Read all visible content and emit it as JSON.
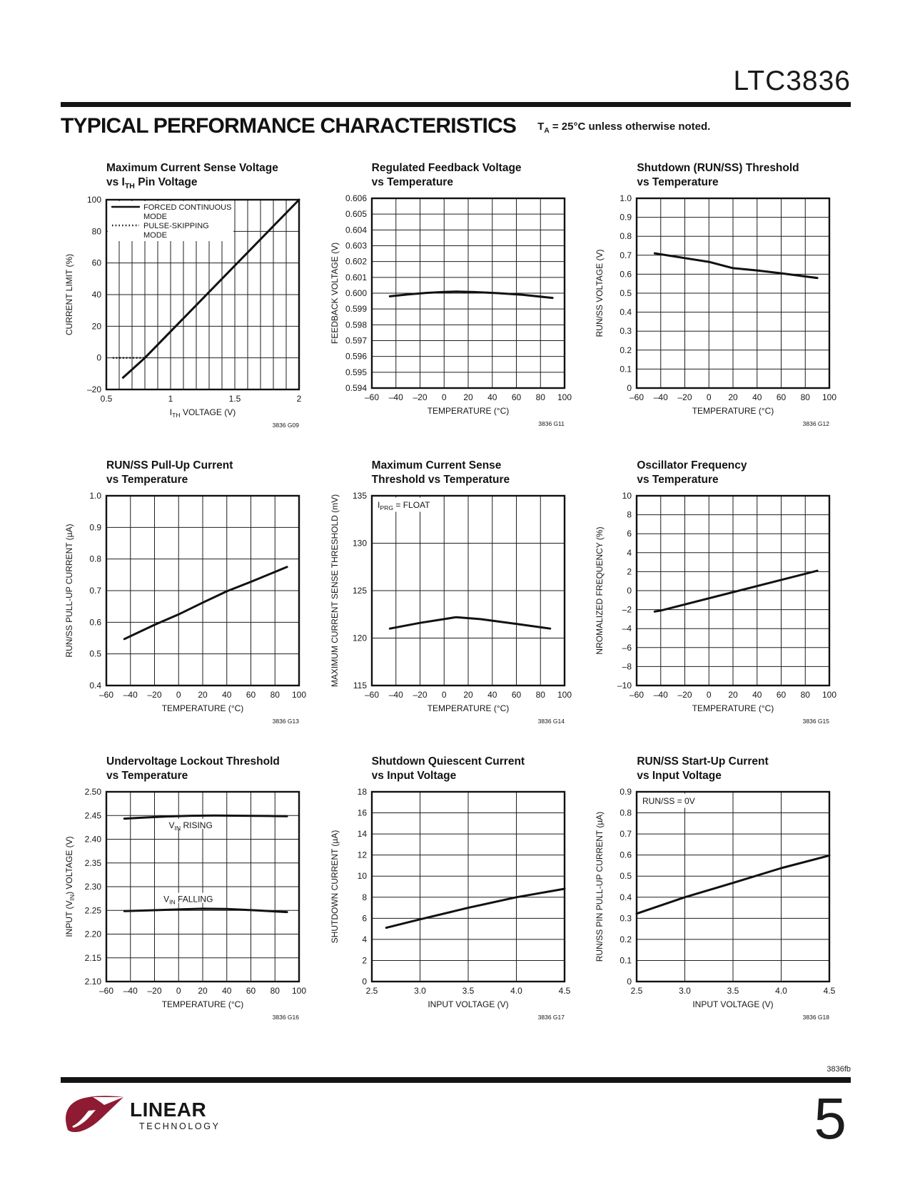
{
  "page": {
    "brand": "LTC3836",
    "section_title": "TYPICAL PERFORMANCE CHARACTERISTICS",
    "condition": "T~A~ = 25°C unless otherwise noted.",
    "doc_code": "3836fb",
    "page_number": "5",
    "logo_line1": "LINEAR",
    "logo_line2": "TECHNOLOGY",
    "logo_color": "#8f1b33"
  },
  "chart_data": [
    {
      "id": "G09",
      "type": "line",
      "title": [
        "Maximum Current Sense Voltage",
        "vs I~TH~ Pin Voltage"
      ],
      "xlabel": "I~TH~ VOLTAGE (V)",
      "ylabel": "CURRENT LIMIT (%)",
      "xlim": [
        0.5,
        2
      ],
      "ylim": [
        -20,
        100
      ],
      "x_ticks": {
        "vals": [
          0.5,
          1,
          1.5,
          2
        ],
        "labels": [
          "0.5",
          "1",
          "1.5",
          "2"
        ]
      },
      "grid_x": [
        0.6,
        0.7,
        0.8,
        0.9,
        1.0,
        1.1,
        1.2,
        1.3,
        1.4,
        1.5,
        1.6,
        1.7,
        1.8,
        1.9
      ],
      "y_ticks": {
        "vals": [
          -20,
          0,
          20,
          40,
          60,
          80,
          100
        ],
        "labels": [
          "–20",
          "0",
          "20",
          "40",
          "60",
          "80",
          "100"
        ]
      },
      "legend": {
        "items": [
          {
            "style": "solid",
            "lines": [
              "FORCED CONTINUOUS",
              "MODE"
            ]
          },
          {
            "style": "dotted",
            "lines": [
              "PULSE-SKIPPING",
              "MODE"
            ]
          }
        ]
      },
      "series": [
        {
          "name": "FORCED CONTINUOUS MODE",
          "style": "solid",
          "points": [
            [
              0.63,
              -12.5
            ],
            [
              0.8,
              0
            ],
            [
              2,
              100
            ]
          ]
        },
        {
          "name": "PULSE-SKIPPING MODE",
          "style": "dotted",
          "points": [
            [
              0.55,
              0
            ],
            [
              0.8,
              0
            ]
          ]
        }
      ],
      "note": "3836 G09"
    },
    {
      "id": "G11",
      "type": "line",
      "title": [
        "Regulated Feedback Voltage",
        "vs Temperature"
      ],
      "xlabel": "TEMPERATURE (°C)",
      "ylabel": "FEEDBACK VOLTAGE (V)",
      "xlim": [
        -60,
        100
      ],
      "ylim": [
        0.594,
        0.606
      ],
      "x_ticks": {
        "vals": [
          -60,
          -40,
          -20,
          0,
          20,
          40,
          60,
          80,
          100
        ],
        "labels": [
          "–60",
          "–40",
          "–20",
          "0",
          "20",
          "40",
          "60",
          "80",
          "100"
        ]
      },
      "y_ticks": {
        "vals": [
          0.594,
          0.595,
          0.596,
          0.597,
          0.598,
          0.599,
          0.6,
          0.601,
          0.602,
          0.603,
          0.604,
          0.605,
          0.606
        ],
        "labels": [
          "0.594",
          "0.595",
          "0.596",
          "0.597",
          "0.598",
          "0.599",
          "0.600",
          "0.601",
          "0.602",
          "0.603",
          "0.604",
          "0.605",
          "0.606"
        ]
      },
      "series": [
        {
          "name": "",
          "style": "solid",
          "points": [
            [
              -45,
              0.5998
            ],
            [
              -30,
              0.59992
            ],
            [
              -15,
              0.60002
            ],
            [
              0,
              0.60008
            ],
            [
              10,
              0.6001
            ],
            [
              25,
              0.60007
            ],
            [
              45,
              0.6
            ],
            [
              65,
              0.5999
            ],
            [
              90,
              0.5997
            ]
          ]
        }
      ],
      "note": "3836 G11"
    },
    {
      "id": "G12",
      "type": "line",
      "title": [
        "Shutdown (RUN/SS) Threshold",
        "vs Temperature"
      ],
      "xlabel": "TEMPERATURE (°C)",
      "ylabel": "RUN/SS VOLTAGE (V)",
      "xlim": [
        -60,
        100
      ],
      "ylim": [
        0,
        1
      ],
      "x_ticks": {
        "vals": [
          -60,
          -40,
          -20,
          0,
          20,
          40,
          60,
          80,
          100
        ],
        "labels": [
          "–60",
          "–40",
          "–20",
          "0",
          "20",
          "40",
          "60",
          "80",
          "100"
        ]
      },
      "y_ticks": {
        "vals": [
          0,
          0.1,
          0.2,
          0.3,
          0.4,
          0.5,
          0.6,
          0.7,
          0.8,
          0.9,
          1
        ],
        "labels": [
          "0",
          "0.1",
          "0.2",
          "0.3",
          "0.4",
          "0.5",
          "0.6",
          "0.7",
          "0.8",
          "0.9",
          "1.0"
        ]
      },
      "series": [
        {
          "name": "",
          "style": "solid",
          "points": [
            [
              -45,
              0.71
            ],
            [
              -20,
              0.685
            ],
            [
              0,
              0.665
            ],
            [
              20,
              0.632
            ],
            [
              40,
              0.62
            ],
            [
              60,
              0.605
            ],
            [
              90,
              0.58
            ]
          ]
        }
      ],
      "note": "3836 G12"
    },
    {
      "id": "G13",
      "type": "line",
      "title": [
        "RUN/SS Pull-Up Current",
        "vs Temperature"
      ],
      "xlabel": "TEMPERATURE (°C)",
      "ylabel": "RUN/SS PULL-UP CURRENT (µA)",
      "xlim": [
        -60,
        100
      ],
      "ylim": [
        0.4,
        1
      ],
      "x_ticks": {
        "vals": [
          -60,
          -40,
          -20,
          0,
          20,
          40,
          60,
          80,
          100
        ],
        "labels": [
          "–60",
          "–40",
          "–20",
          "0",
          "20",
          "40",
          "60",
          "80",
          "100"
        ]
      },
      "y_ticks": {
        "vals": [
          0.4,
          0.5,
          0.6,
          0.7,
          0.8,
          0.9,
          1
        ],
        "labels": [
          "0.4",
          "0.5",
          "0.6",
          "0.7",
          "0.8",
          "0.9",
          "1.0"
        ]
      },
      "series": [
        {
          "name": "",
          "style": "solid",
          "points": [
            [
              -45,
              0.547
            ],
            [
              -20,
              0.592
            ],
            [
              0,
              0.625
            ],
            [
              20,
              0.662
            ],
            [
              40,
              0.698
            ],
            [
              60,
              0.728
            ],
            [
              90,
              0.775
            ]
          ]
        }
      ],
      "note": "3836 G13"
    },
    {
      "id": "G14",
      "type": "line",
      "title": [
        "Maximum Current Sense",
        "Threshold vs Temperature"
      ],
      "xlabel": "TEMPERATURE (°C)",
      "ylabel": "MAXIMUM CURRENT SENSE THRESHOLD (mV)",
      "xlim": [
        -60,
        100
      ],
      "ylim": [
        115,
        135
      ],
      "annotation": "I~PRG~ = FLOAT",
      "x_ticks": {
        "vals": [
          -60,
          -40,
          -20,
          0,
          20,
          40,
          60,
          80,
          100
        ],
        "labels": [
          "–60",
          "–40",
          "–20",
          "0",
          "20",
          "40",
          "60",
          "80",
          "100"
        ]
      },
      "y_ticks": {
        "vals": [
          115,
          120,
          125,
          130,
          135
        ],
        "labels": [
          "115",
          "120",
          "125",
          "130",
          "135"
        ]
      },
      "series": [
        {
          "name": "",
          "style": "solid",
          "points": [
            [
              -45,
              121.0
            ],
            [
              -20,
              121.6
            ],
            [
              0,
              122.0
            ],
            [
              10,
              122.2
            ],
            [
              30,
              122.0
            ],
            [
              60,
              121.5
            ],
            [
              88,
              121.0
            ]
          ]
        }
      ],
      "note": "3836 G14"
    },
    {
      "id": "G15",
      "type": "line",
      "title": [
        "Oscillator Frequency",
        "vs Temperature"
      ],
      "xlabel": "TEMPERATURE (°C)",
      "ylabel": "NROMALIZED FREQUENCY (%)",
      "xlim": [
        -60,
        100
      ],
      "ylim": [
        -10,
        10
      ],
      "x_ticks": {
        "vals": [
          -60,
          -40,
          -20,
          0,
          20,
          40,
          60,
          80,
          100
        ],
        "labels": [
          "–60",
          "–40",
          "–20",
          "0",
          "20",
          "40",
          "60",
          "80",
          "100"
        ]
      },
      "y_ticks": {
        "vals": [
          -10,
          -8,
          -6,
          -4,
          -2,
          0,
          2,
          4,
          6,
          8,
          10
        ],
        "labels": [
          "–10",
          "–8",
          "–6",
          "–4",
          "–2",
          "0",
          "2",
          "4",
          "6",
          "8",
          "10"
        ]
      },
      "series": [
        {
          "name": "",
          "style": "solid",
          "points": [
            [
              -45,
              -2.2
            ],
            [
              -40,
              -2.1
            ],
            [
              90,
              2.1
            ]
          ]
        }
      ],
      "note": "3836 G15"
    },
    {
      "id": "G16",
      "type": "line",
      "title": [
        "Undervoltage Lockout Threshold",
        "vs Temperature"
      ],
      "xlabel": "TEMPERATURE (°C)",
      "ylabel": "INPUT (V~IN~) VOLTAGE (V)",
      "xlim": [
        -60,
        100
      ],
      "ylim": [
        2.1,
        2.5
      ],
      "x_ticks": {
        "vals": [
          -60,
          -40,
          -20,
          0,
          20,
          40,
          60,
          80,
          100
        ],
        "labels": [
          "–60",
          "–40",
          "–20",
          "0",
          "20",
          "40",
          "60",
          "80",
          "100"
        ]
      },
      "y_ticks": {
        "vals": [
          2.1,
          2.15,
          2.2,
          2.25,
          2.3,
          2.35,
          2.4,
          2.45,
          2.5
        ],
        "labels": [
          "2.10",
          "2.15",
          "2.20",
          "2.25",
          "2.30",
          "2.35",
          "2.40",
          "2.45",
          "2.50"
        ]
      },
      "labels": [
        {
          "text": "V~IN~ RISING",
          "x": 10,
          "y": 2.428
        },
        {
          "text": "V~IN~ FALLING",
          "x": 8,
          "y": 2.272
        }
      ],
      "series": [
        {
          "name": "VIN RISING",
          "style": "solid",
          "points": [
            [
              -45,
              2.4435
            ],
            [
              -30,
              2.4455
            ],
            [
              -10,
              2.448
            ],
            [
              10,
              2.4495
            ],
            [
              30,
              2.45
            ],
            [
              55,
              2.4495
            ],
            [
              75,
              2.449
            ],
            [
              90,
              2.4485
            ]
          ]
        },
        {
          "name": "VIN FALLING",
          "style": "solid",
          "points": [
            [
              -45,
              2.2485
            ],
            [
              -25,
              2.25
            ],
            [
              0,
              2.252
            ],
            [
              20,
              2.2535
            ],
            [
              40,
              2.253
            ],
            [
              65,
              2.25
            ],
            [
              90,
              2.2465
            ]
          ]
        }
      ],
      "note": "3836 G16"
    },
    {
      "id": "G17",
      "type": "line",
      "title": [
        "Shutdown Quiescent Current",
        "vs Input Voltage"
      ],
      "xlabel": "INPUT VOLTAGE (V)",
      "ylabel": "SHUTDOWN CURRENT (µA)",
      "xlim": [
        2.5,
        4.5
      ],
      "ylim": [
        0,
        18
      ],
      "x_ticks": {
        "vals": [
          2.5,
          3,
          3.5,
          4,
          4.5
        ],
        "labels": [
          "2.5",
          "3.0",
          "3.5",
          "4.0",
          "4.5"
        ]
      },
      "y_ticks": {
        "vals": [
          0,
          2,
          4,
          6,
          8,
          10,
          12,
          14,
          16,
          18
        ],
        "labels": [
          "0",
          "2",
          "4",
          "6",
          "8",
          "10",
          "12",
          "14",
          "16",
          "18"
        ]
      },
      "series": [
        {
          "name": "",
          "style": "solid",
          "points": [
            [
              2.65,
              5.1
            ],
            [
              3,
              5.9
            ],
            [
              3.5,
              7.0
            ],
            [
              4,
              8.0
            ],
            [
              4.5,
              8.8
            ]
          ]
        }
      ],
      "note": "3836 G17"
    },
    {
      "id": "G18",
      "type": "line",
      "title": [
        "RUN/SS Start-Up Current",
        "vs Input Voltage"
      ],
      "xlabel": "INPUT VOLTAGE (V)",
      "ylabel": "RUN/SS PIN PULL-UP CURRENT (µA)",
      "xlim": [
        2.5,
        4.5
      ],
      "ylim": [
        0,
        0.9
      ],
      "annotation": "RUN/SS = 0V",
      "x_ticks": {
        "vals": [
          2.5,
          3,
          3.5,
          4,
          4.5
        ],
        "labels": [
          "2.5",
          "3.0",
          "3.5",
          "4.0",
          "4.5"
        ]
      },
      "y_ticks": {
        "vals": [
          0,
          0.1,
          0.2,
          0.3,
          0.4,
          0.5,
          0.6,
          0.7,
          0.8,
          0.9
        ],
        "labels": [
          "0",
          "0.1",
          "0.2",
          "0.3",
          "0.4",
          "0.5",
          "0.6",
          "0.7",
          "0.8",
          "0.9"
        ]
      },
      "series": [
        {
          "name": "",
          "style": "solid",
          "points": [
            [
              2.5,
              0.322
            ],
            [
              3,
              0.4
            ],
            [
              3.5,
              0.468
            ],
            [
              4,
              0.538
            ],
            [
              4.5,
              0.598
            ]
          ]
        }
      ],
      "note": "3836 G18"
    }
  ]
}
